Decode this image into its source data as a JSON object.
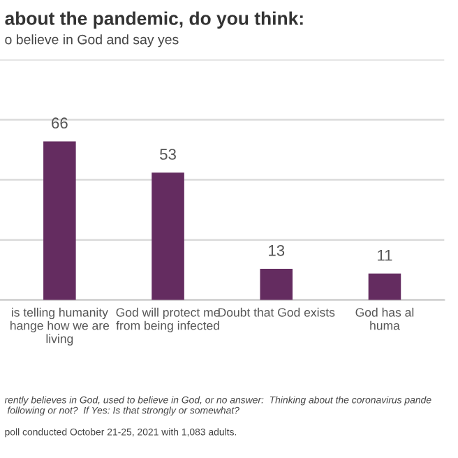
{
  "chart_data": {
    "type": "bar",
    "title": "about the pandemic, do you think:",
    "subtitle": "o believe in God and say yes",
    "categories": [
      "is telling humanity\nhange how we are\nliving",
      "God will protect me\nfrom being infected",
      "Doubt that God exists",
      "God has al\nhuma"
    ],
    "values": [
      66,
      53,
      13,
      11
    ],
    "color": "#642c60",
    "data_labels": true,
    "ylim": [
      0,
      100
    ],
    "yticks": [
      {
        "value": 0,
        "label": null
      },
      {
        "value": 25,
        "label": null
      },
      {
        "value": 50,
        "label": null
      },
      {
        "value": 75,
        "label": null
      },
      {
        "value": 100,
        "label": null
      }
    ],
    "grid": "y",
    "tick_labels": "x",
    "annotations": [
      "rently believes in God, used to believe in God, or no answer:  Thinking about the coronavirus pande\n following or not?  If Yes: Is that strongly or somewhat?",
      "poll conducted October 21-25, 2021 with 1,083 adults."
    ]
  }
}
